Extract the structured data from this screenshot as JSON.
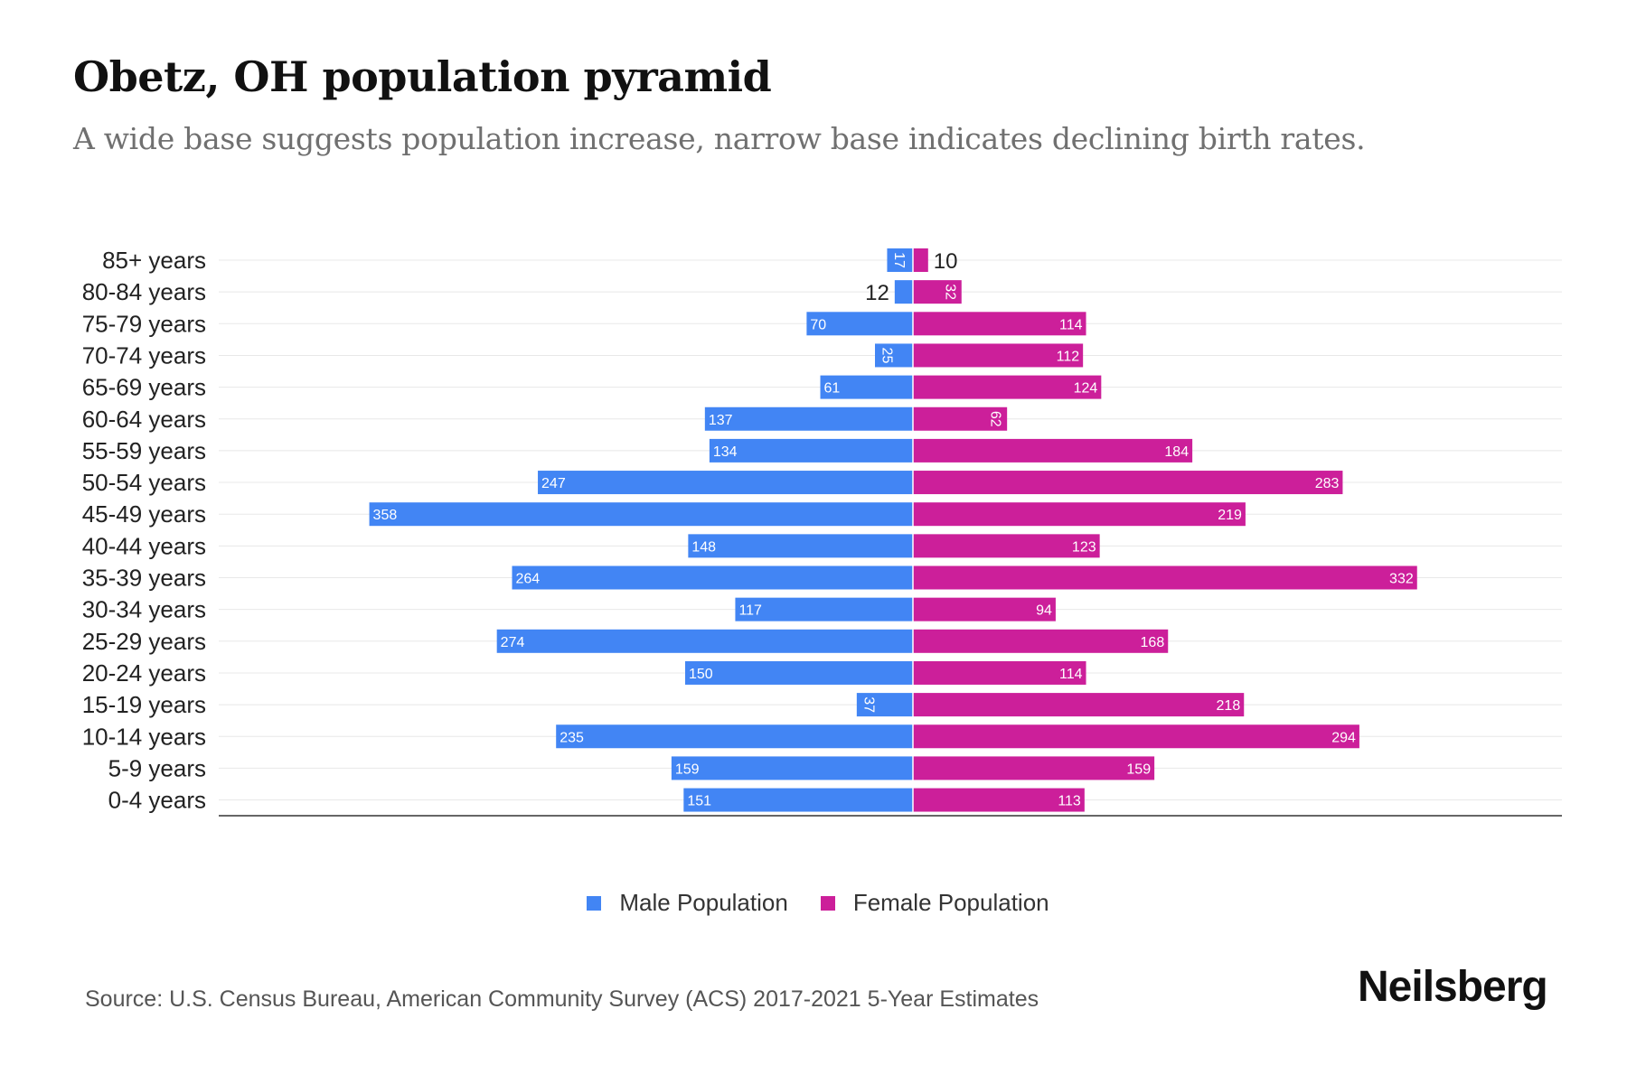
{
  "header": {
    "title": "Obetz, OH population pyramid",
    "subtitle": "A wide base suggests population increase, narrow base indicates declining birth rates."
  },
  "legend": {
    "male_label": "Male Population",
    "female_label": "Female Population"
  },
  "footer": {
    "source": "Source: U.S. Census Bureau, American Community Survey (ACS) 2017-2021 5-Year Estimates",
    "brand": "Neilsberg"
  },
  "colors": {
    "male": "#4285f4",
    "female": "#cc1f9a",
    "grid": "#e8e8e8",
    "axis": "#333333",
    "label": "#222222"
  },
  "chart_data": {
    "type": "bar",
    "orientation": "horizontal-diverging",
    "categories": [
      "85+ years",
      "80-84 years",
      "75-79 years",
      "70-74 years",
      "65-69 years",
      "60-64 years",
      "55-59 years",
      "50-54 years",
      "45-49 years",
      "40-44 years",
      "35-39 years",
      "30-34 years",
      "25-29 years",
      "20-24 years",
      "15-19 years",
      "10-14 years",
      "5-9 years",
      "0-4 years"
    ],
    "series": [
      {
        "name": "Male Population",
        "values": [
          17,
          12,
          70,
          25,
          61,
          137,
          134,
          247,
          358,
          148,
          264,
          117,
          274,
          150,
          37,
          235,
          159,
          151
        ]
      },
      {
        "name": "Female Population",
        "values": [
          10,
          32,
          114,
          112,
          124,
          62,
          184,
          283,
          219,
          123,
          332,
          94,
          168,
          114,
          218,
          294,
          159,
          113
        ]
      }
    ],
    "xlim": [
      -400,
      400
    ],
    "grid": true,
    "legend_position": "bottom"
  }
}
